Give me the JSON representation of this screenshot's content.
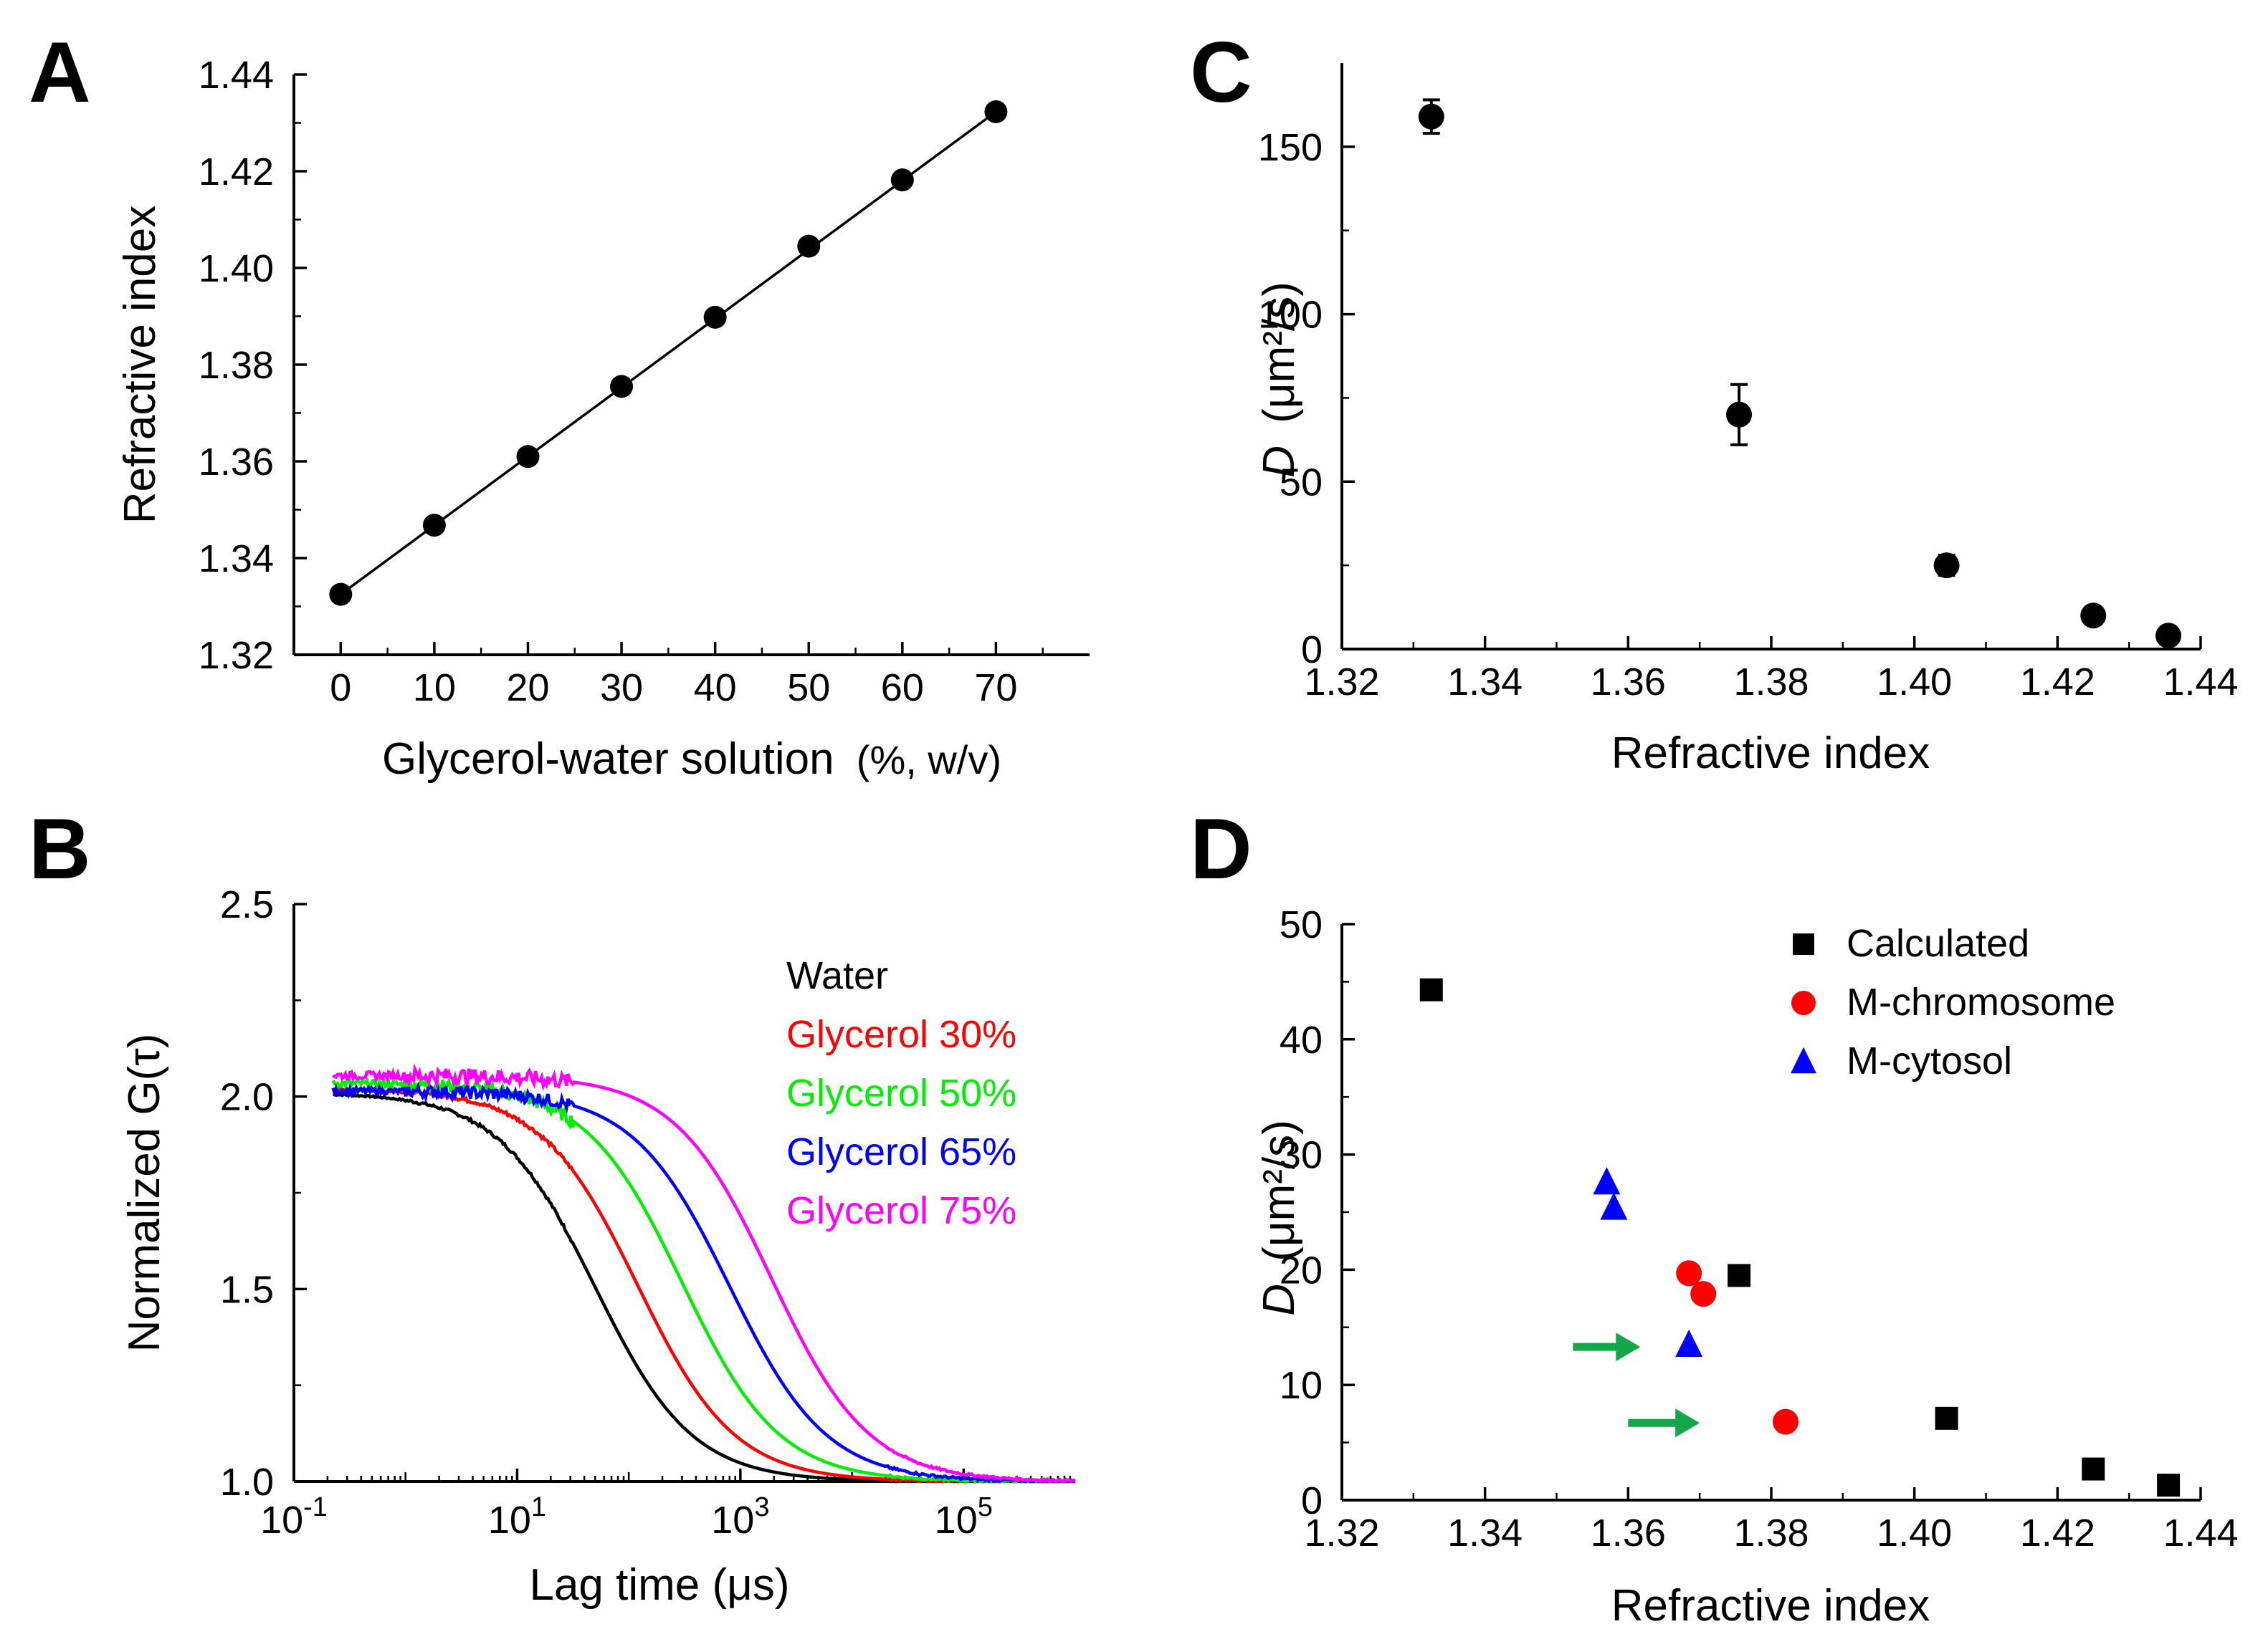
{
  "chart_data": [
    {
      "id": "A",
      "panel_label": "A",
      "type": "scatter",
      "x": [
        0,
        10,
        20,
        30,
        40,
        50,
        60,
        70
      ],
      "y": [
        1.3325,
        1.3468,
        1.361,
        1.3755,
        1.3898,
        1.4045,
        1.4182,
        1.4323
      ],
      "fit_line": {
        "from": [
          0,
          1.3325
        ],
        "to": [
          70,
          1.4323
        ]
      },
      "xlabel": "Glycerol-water solution",
      "xlabel_suffix": "(%, w/v)",
      "ylabel": "Refractive index",
      "xlim": [
        -5,
        80
      ],
      "ylim": [
        1.32,
        1.44
      ],
      "xticks": [
        "0",
        "10",
        "20",
        "30",
        "40",
        "50",
        "60",
        "70"
      ],
      "yticks": [
        "1.32",
        "1.34",
        "1.36",
        "1.38",
        "1.40",
        "1.42",
        "1.44"
      ],
      "marker_color": "#000000"
    },
    {
      "id": "B",
      "panel_label": "B",
      "type": "line",
      "x_scale": "log",
      "xlabel": "Lag time (μs)",
      "ylabel": "Normalized G(τ)",
      "xlim": [
        0.1,
        1000000
      ],
      "ylim": [
        1.0,
        2.5
      ],
      "xticks": [
        {
          "base": "10",
          "exp": "-1"
        },
        {
          "base": "10",
          "exp": "1"
        },
        {
          "base": "10",
          "exp": "3"
        },
        {
          "base": "10",
          "exp": "5"
        }
      ],
      "yticks": [
        "1.0",
        "1.5",
        "2.0",
        "2.5"
      ],
      "series": [
        {
          "name": "Water",
          "color": "#000000",
          "g0": 2.01,
          "tau_d": 50,
          "noise": 0.004
        },
        {
          "name": "Glycerol 30%",
          "color": "#ff0000",
          "g0": 2.02,
          "tau_d": 120,
          "noise": 0.005
        },
        {
          "name": "Glycerol 50%",
          "color": "#00ee00",
          "g0": 2.035,
          "tau_d": 300,
          "noise": 0.018
        },
        {
          "name": "Glycerol 65%",
          "color": "#0000ff",
          "g0": 2.015,
          "tau_d": 800,
          "noise": 0.016
        },
        {
          "name": "Glycerol 75%",
          "color": "#ff00ff",
          "g0": 2.055,
          "tau_d": 1900,
          "noise": 0.02
        }
      ]
    },
    {
      "id": "C",
      "panel_label": "C",
      "type": "scatter",
      "x": [
        1.3325,
        1.3755,
        1.4045,
        1.425,
        1.4355
      ],
      "y": [
        159,
        70,
        25,
        10,
        4
      ],
      "y_err": [
        5,
        9,
        3,
        2,
        1.5
      ],
      "xlabel": "Refractive index",
      "ylabel_italic": "D",
      "ylabel_unit": "(μm²/s)",
      "xlim": [
        1.32,
        1.44
      ],
      "ylim": [
        0,
        175
      ],
      "xticks": [
        "1.32",
        "1.34",
        "1.36",
        "1.38",
        "1.40",
        "1.42",
        "1.44"
      ],
      "yticks": [
        "0",
        "50",
        "100",
        "150"
      ],
      "marker_color": "#000000"
    },
    {
      "id": "D",
      "panel_label": "D",
      "type": "scatter",
      "xlabel": "Refractive index",
      "ylabel_italic": "D",
      "ylabel_unit": "(μm²/s)",
      "xlim": [
        1.32,
        1.44
      ],
      "ylim": [
        0,
        50
      ],
      "xticks": [
        "1.32",
        "1.34",
        "1.36",
        "1.38",
        "1.40",
        "1.42",
        "1.44"
      ],
      "yticks": [
        "0",
        "10",
        "20",
        "30",
        "40",
        "50"
      ],
      "series": [
        {
          "name": "Calculated",
          "marker": "square",
          "color": "#000000",
          "x": [
            1.3325,
            1.3755,
            1.4045,
            1.425,
            1.4355
          ],
          "y": [
            44.3,
            19.5,
            7.1,
            2.7,
            1.3
          ]
        },
        {
          "name": "M-chromosome",
          "marker": "circle",
          "color": "#ff0000",
          "x": [
            1.3685,
            1.3705,
            1.382
          ],
          "y": [
            19.7,
            17.9,
            6.8
          ]
        },
        {
          "name": "M-cytosol",
          "marker": "triangle",
          "color": "#0000ff",
          "x": [
            1.357,
            1.358,
            1.3685
          ],
          "y": [
            27.6,
            25.4,
            13.5
          ]
        }
      ],
      "arrows": [
        {
          "x_from": 1.3523,
          "x_to": 1.3617,
          "y": 13.3
        },
        {
          "x_from": 1.36,
          "x_to": 1.37,
          "y": 6.7
        }
      ],
      "arrow_color": "#12a84a"
    }
  ]
}
